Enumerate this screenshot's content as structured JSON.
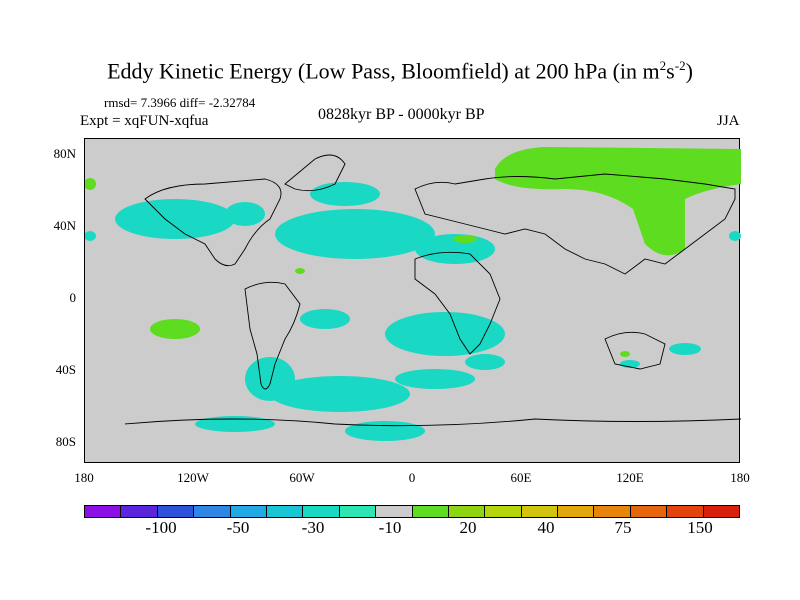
{
  "title": {
    "main": "Eddy Kinetic Energy (Low Pass, Bloomfield) at 200 hPa (in m",
    "sup1": "2",
    "mid": "s",
    "sup2": "-2",
    "end": ")"
  },
  "stats": "rmsd= 7.3966 diff= -2.32784",
  "expt": "Expt = xqFUN-xqfua",
  "period": "0828kyr BP - 0000kyr BP",
  "season": "JJA",
  "lat_labels": [
    "80N",
    "40N",
    "0",
    "40S",
    "80S"
  ],
  "lon_labels": [
    "180",
    "120W",
    "60W",
    "0",
    "60E",
    "120E",
    "180"
  ],
  "colorbar": {
    "colors": [
      "#8a10e6",
      "#5a25dc",
      "#2b52d8",
      "#2e86e6",
      "#20a9e4",
      "#19c4d4",
      "#19d8c4",
      "#2ee6b4",
      "#cccccc",
      "#5edc20",
      "#8ed410",
      "#b4d40c",
      "#d2c40c",
      "#e0a80c",
      "#e6840c",
      "#e6640c",
      "#e4440c",
      "#d8200c"
    ],
    "labels": [
      "-100",
      "-50",
      "-30",
      "-10",
      "20",
      "40",
      "75",
      "150"
    ]
  },
  "fill_colors": {
    "neg": "#19d8c4",
    "pos": "#5edc20"
  }
}
